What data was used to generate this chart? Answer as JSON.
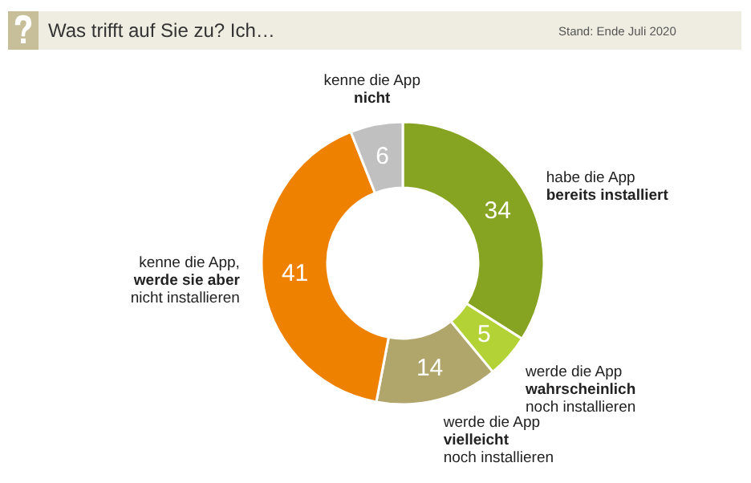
{
  "chart_data": {
    "type": "donut",
    "title": "Was trifft auf Sie zu? Ich…",
    "annotations": [
      "Stand: Ende Juli 2020"
    ],
    "categories": [
      "habe die App\nbereits installiert",
      "werde die App\nwahrscheinlich\nnoch installieren",
      "werde die App\nvielleicht\nnoch installieren",
      "kenne die App,\nwerde sie aber\nnicht installieren",
      "kenne die App\nnicht"
    ],
    "values": [
      34,
      5,
      14,
      41,
      6
    ],
    "colors": [
      "#86a321",
      "#b2d235",
      "#b0a66b",
      "#ee8200",
      "#c0c0c0"
    ],
    "data_labels": true
  }
}
